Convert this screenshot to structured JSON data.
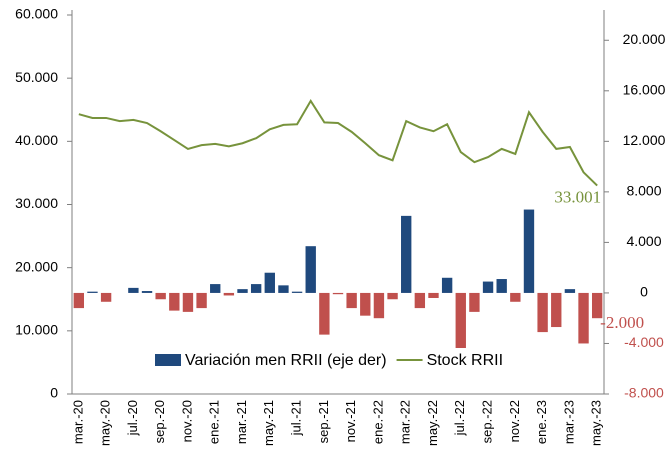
{
  "chart_data": {
    "type": "bar-line",
    "categories": [
      "mar.-20",
      null,
      "may.-20",
      null,
      "jul.-20",
      null,
      "sep.-20",
      null,
      "nov.-20",
      null,
      "ene.-21",
      null,
      "mar.-21",
      null,
      "may.-21",
      null,
      "jul.-21",
      null,
      "sep.-21",
      null,
      "nov.-21",
      null,
      "ene.-22",
      null,
      "mar.-22",
      null,
      "may.-22",
      null,
      "jul.-22",
      null,
      "sep.-22",
      null,
      "nov.-22",
      null,
      "ene.-23",
      null,
      "mar.-23",
      null,
      "may.-23"
    ],
    "series": [
      {
        "name": "Variación men RRII (eje der)",
        "type": "bar",
        "axis": "y2",
        "color": "#1f497d",
        "negative_color": "#c0504d",
        "values": [
          -1200,
          100,
          -700,
          0,
          400,
          150,
          -500,
          -1400,
          -1500,
          -1200,
          700,
          -200,
          300,
          700,
          1600,
          600,
          100,
          3700,
          -3300,
          -100,
          -1200,
          -1800,
          -2000,
          -500,
          6100,
          -1200,
          -400,
          1200,
          -4400,
          -1500,
          900,
          1100,
          -700,
          6600,
          -3100,
          -2700,
          300,
          -4000,
          -2000
        ],
        "value_labels": [
          null,
          null,
          null,
          null,
          null,
          null,
          null,
          null,
          null,
          null,
          null,
          null,
          null,
          null,
          null,
          null,
          null,
          null,
          null,
          null,
          null,
          null,
          null,
          null,
          null,
          null,
          null,
          null,
          null,
          null,
          null,
          null,
          null,
          null,
          null,
          null,
          null,
          null,
          "-2.000"
        ]
      },
      {
        "name": "Stock RRII",
        "type": "line",
        "color": "#77933c",
        "values": [
          44300,
          43700,
          43700,
          43200,
          43400,
          42900,
          41600,
          40200,
          38800,
          39400,
          39600,
          39200,
          39700,
          40500,
          41900,
          42600,
          42700,
          46400,
          43000,
          42900,
          41500,
          39700,
          37800,
          37000,
          43200,
          42200,
          41600,
          42700,
          38300,
          36700,
          37500,
          38800,
          38000,
          44600,
          41500,
          38800,
          39100,
          35100,
          33001
        ],
        "value_labels": [
          null,
          null,
          null,
          null,
          null,
          null,
          null,
          null,
          null,
          null,
          null,
          null,
          null,
          null,
          null,
          null,
          null,
          null,
          null,
          null,
          null,
          null,
          null,
          null,
          null,
          null,
          null,
          null,
          null,
          null,
          null,
          null,
          null,
          null,
          null,
          null,
          null,
          null,
          "33.001"
        ]
      }
    ],
    "ylim": [
      0,
      60000
    ],
    "yticks": [
      0,
      {
        "value": 10000,
        "label": "10.000"
      },
      {
        "value": 20000,
        "label": "20.000"
      },
      {
        "value": 30000,
        "label": "30.000"
      },
      {
        "value": 40000,
        "label": "40.000"
      },
      {
        "value": 50000,
        "label": "50.000"
      },
      {
        "value": 60000,
        "label": "60.000"
      }
    ],
    "y2lim": [
      -8000,
      22000
    ],
    "y2ticks": [
      {
        "value": -8000,
        "label": "-8.000"
      },
      {
        "value": -4000,
        "label": "-4.000"
      },
      0,
      {
        "value": 4000,
        "label": "4.000"
      },
      {
        "value": 8000,
        "label": "8.000"
      },
      {
        "value": 12000,
        "label": "12.000"
      },
      {
        "value": 16000,
        "label": "16.000"
      },
      {
        "value": 20000,
        "label": "20.000"
      }
    ],
    "grid": false,
    "legend": "bottom"
  }
}
